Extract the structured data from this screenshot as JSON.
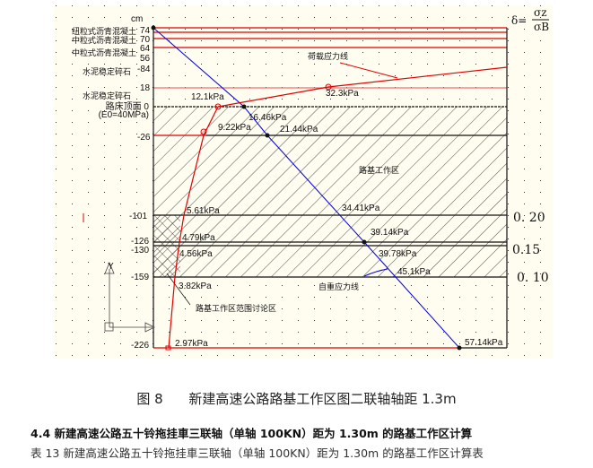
{
  "diagram": {
    "unit": "cm",
    "formula": {
      "lhs": "δ=",
      "num": "σz",
      "den": "σB"
    },
    "depth_labels": [
      "74",
      "70",
      "64",
      "56",
      "-84",
      "18",
      "路床顶面 0",
      "(E0=40MPa)",
      "-26",
      "-101",
      "-126",
      "-130",
      "-159",
      "-226"
    ],
    "layers": [
      "纽粒式沥青混凝土",
      "中粒式沥青混凝土",
      "中粒式沥青混凝土",
      "水泥稳定碎石",
      "水泥稳定碎石"
    ],
    "load_stress_label": "荷载应力线",
    "self_weight_label": "自重应力线",
    "zone_label": "路基工作区",
    "discussion_label": "路基工作区范围讨论区",
    "load_values": [
      "12.1kPa",
      "9.22kPa",
      "5.61kPa",
      "4.79kPa",
      "4.56kPa",
      "3.82kPa",
      "2.97kPa",
      "32.3kPa"
    ],
    "self_values": [
      "16.46kPa",
      "21.44kPa",
      "34.41kPa",
      "39.14kPa",
      "39.78kPa",
      "45.1kPa",
      "57.14kPa"
    ],
    "ratios": [
      "0. 20",
      "0.15",
      "0. 10"
    ],
    "colors": {
      "load": "#e00000",
      "self": "#0000e0",
      "bg": "#fffcf0"
    }
  },
  "caption": {
    "fig": "图 8",
    "title": "新建高速公路路基工作区图二联轴轴距 1.3m"
  },
  "heading": "4.4 新建高速公路五十铃拖挂車三联轴（单轴 100KN）距为 1.30m 的路基工作区计算",
  "table_caption": "表 13  新建高速公路五十铃拖挂車三联轴（单轴 100KN）距为 1.30m 的路基工作区计算表"
}
